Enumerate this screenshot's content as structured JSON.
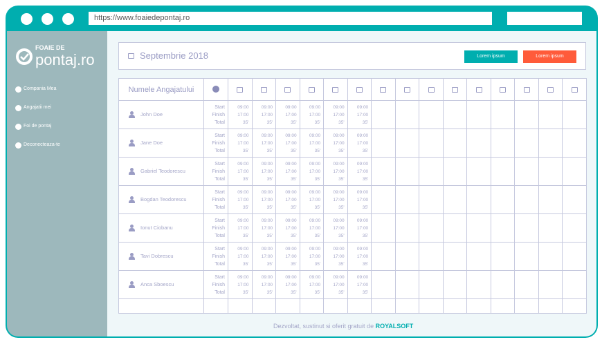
{
  "browser": {
    "url": "https://www.foaiedepontaj.ro"
  },
  "logo": {
    "line1": "FOAIE DE",
    "line2": "pontaj.ro"
  },
  "sidebar": {
    "items": [
      {
        "label": "Compania Mea"
      },
      {
        "label": "Angajatii mei"
      },
      {
        "label": "Foi de pontaj"
      },
      {
        "label": "Deconecteaza-te"
      }
    ]
  },
  "header": {
    "month": "Septembrie 2018",
    "button1": "Lorem ipsum",
    "button2": "Lorem ipsum",
    "button1_color": "#00AEAF",
    "button2_color": "#FF5B3A"
  },
  "table": {
    "name_header": "Numele Angajatului",
    "day_columns": 15,
    "row_labels": [
      "Start",
      "Finish",
      "Total"
    ],
    "employees": [
      {
        "name": "John Doe",
        "days": [
          [
            "09:00",
            "17:00",
            "35'"
          ],
          [
            "09:00",
            "17:00",
            "35'"
          ],
          [
            "09:00",
            "17:00",
            "35'"
          ],
          [
            "09:00",
            "17:00",
            "35'"
          ],
          [
            "09:00",
            "17:00",
            "35'"
          ],
          [
            "09:00",
            "17:00",
            "35'"
          ]
        ]
      },
      {
        "name": "Jane Doe",
        "days": [
          [
            "09:00",
            "17:00",
            "35'"
          ],
          [
            "09:00",
            "17:00",
            "35'"
          ],
          [
            "09:00",
            "17:00",
            "35'"
          ],
          [
            "09:00",
            "17:00",
            "35'"
          ],
          [
            "09:00",
            "17:00",
            "35'"
          ],
          [
            "09:00",
            "17:00",
            "35'"
          ]
        ]
      },
      {
        "name": "Gabriel Teodorescu",
        "days": [
          [
            "09:00",
            "17:00",
            "35'"
          ],
          [
            "09:00",
            "17:00",
            "35'"
          ],
          [
            "09:00",
            "17:00",
            "35'"
          ],
          [
            "09:00",
            "17:00",
            "35'"
          ],
          [
            "09:00",
            "17:00",
            "35'"
          ],
          [
            "09:00",
            "17:00",
            "35'"
          ]
        ]
      },
      {
        "name": "Bogdan Teodorescu",
        "days": [
          [
            "09:00",
            "17:00",
            "35'"
          ],
          [
            "09:00",
            "17:00",
            "35'"
          ],
          [
            "09:00",
            "17:00",
            "35'"
          ],
          [
            "09:00",
            "17:00",
            "35'"
          ],
          [
            "09:00",
            "17:00",
            "35'"
          ],
          [
            "09:00",
            "17:00",
            "35'"
          ]
        ]
      },
      {
        "name": "Ionut Ciobanu",
        "days": [
          [
            "09:00",
            "17:00",
            "35'"
          ],
          [
            "09:00",
            "17:00",
            "35'"
          ],
          [
            "09:00",
            "17:00",
            "35'"
          ],
          [
            "09:00",
            "17:00",
            "35'"
          ],
          [
            "09:00",
            "17:00",
            "35'"
          ],
          [
            "09:00",
            "17:00",
            "35'"
          ]
        ]
      },
      {
        "name": "Tavi Dobrescu",
        "days": [
          [
            "09:00",
            "17:00",
            "35'"
          ],
          [
            "09:00",
            "17:00",
            "35'"
          ],
          [
            "09:00",
            "17:00",
            "35'"
          ],
          [
            "09:00",
            "17:00",
            "35'"
          ],
          [
            "09:00",
            "17:00",
            "35'"
          ],
          [
            "09:00",
            "17:00",
            "35'"
          ]
        ]
      },
      {
        "name": "Anca Sboescu",
        "days": [
          [
            "09:00",
            "17:00",
            "35'"
          ],
          [
            "09:00",
            "17:00",
            "35'"
          ],
          [
            "09:00",
            "17:00",
            "35'"
          ],
          [
            "09:00",
            "17:00",
            "35'"
          ],
          [
            "09:00",
            "17:00",
            "35'"
          ],
          [
            "09:00",
            "17:00",
            "35'"
          ]
        ]
      }
    ]
  },
  "footer": {
    "text": "Dezvoltat, sustinut si oferit gratuit de",
    "brand": "ROYALSOFT"
  }
}
